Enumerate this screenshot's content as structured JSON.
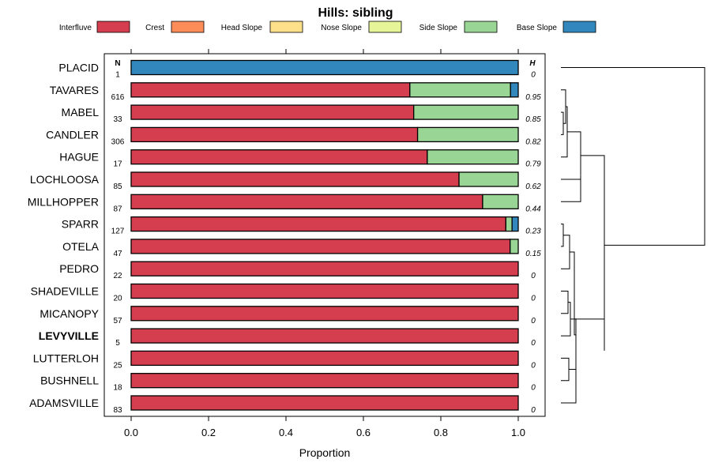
{
  "chart_data": {
    "type": "bar",
    "orientation": "horizontal",
    "stacked": true,
    "title": "Hills: sibling",
    "xlabel": "Proportion",
    "xlim": [
      0,
      1
    ],
    "xticks": [
      "0.0",
      "0.2",
      "0.4",
      "0.6",
      "0.8",
      "1.0"
    ],
    "n_header": "N",
    "h_header": "H",
    "legend": [
      {
        "name": "Interfluve",
        "color": "#d53e4f"
      },
      {
        "name": "Crest",
        "color": "#fc8d59"
      },
      {
        "name": "Head Slope",
        "color": "#fee08b"
      },
      {
        "name": "Nose Slope",
        "color": "#e6f598"
      },
      {
        "name": "Side Slope",
        "color": "#99d594"
      },
      {
        "name": "Base Slope",
        "color": "#3288bd"
      }
    ],
    "rows": [
      {
        "label": "PLACID",
        "n": "1",
        "h": "0",
        "bold": false,
        "values": [
          0,
          0,
          0,
          0,
          0,
          1.0
        ]
      },
      {
        "label": "TAVARES",
        "n": "616",
        "h": "0.95",
        "bold": false,
        "values": [
          0.72,
          0,
          0,
          0,
          0.26,
          0.02
        ]
      },
      {
        "label": "MABEL",
        "n": "33",
        "h": "0.85",
        "bold": false,
        "values": [
          0.73,
          0,
          0,
          0,
          0.27,
          0
        ]
      },
      {
        "label": "CANDLER",
        "n": "306",
        "h": "0.82",
        "bold": false,
        "values": [
          0.74,
          0,
          0,
          0,
          0.26,
          0
        ]
      },
      {
        "label": "HAGUE",
        "n": "17",
        "h": "0.79",
        "bold": false,
        "values": [
          0.765,
          0,
          0,
          0,
          0.235,
          0
        ]
      },
      {
        "label": "LOCHLOOSA",
        "n": "85",
        "h": "0.62",
        "bold": false,
        "values": [
          0.847,
          0,
          0,
          0,
          0.153,
          0
        ]
      },
      {
        "label": "MILLHOPPER",
        "n": "87",
        "h": "0.44",
        "bold": false,
        "values": [
          0.908,
          0,
          0,
          0,
          0.092,
          0
        ]
      },
      {
        "label": "SPARR",
        "n": "127",
        "h": "0.23",
        "bold": false,
        "values": [
          0.968,
          0,
          0,
          0,
          0.016,
          0.016
        ]
      },
      {
        "label": "OTELA",
        "n": "47",
        "h": "0.15",
        "bold": false,
        "values": [
          0.979,
          0,
          0,
          0,
          0.021,
          0
        ]
      },
      {
        "label": "PEDRO",
        "n": "22",
        "h": "0",
        "bold": false,
        "values": [
          1.0,
          0,
          0,
          0,
          0,
          0
        ]
      },
      {
        "label": "SHADEVILLE",
        "n": "20",
        "h": "0",
        "bold": false,
        "values": [
          1.0,
          0,
          0,
          0,
          0,
          0
        ]
      },
      {
        "label": "MICANOPY",
        "n": "57",
        "h": "0",
        "bold": false,
        "values": [
          1.0,
          0,
          0,
          0,
          0,
          0
        ]
      },
      {
        "label": "LEVYVILLE",
        "n": "5",
        "h": "0",
        "bold": true,
        "values": [
          1.0,
          0,
          0,
          0,
          0,
          0
        ]
      },
      {
        "label": "LUTTERLOH",
        "n": "25",
        "h": "0",
        "bold": false,
        "values": [
          1.0,
          0,
          0,
          0,
          0,
          0
        ]
      },
      {
        "label": "BUSHNELL",
        "n": "18",
        "h": "0",
        "bold": false,
        "values": [
          1.0,
          0,
          0,
          0,
          0,
          0
        ]
      },
      {
        "label": "ADAMSVILLE",
        "n": "83",
        "h": "0",
        "bold": false,
        "values": [
          1.0,
          0,
          0,
          0,
          0,
          0
        ]
      }
    ],
    "dendrogram": {
      "leaves": [
        "PLACID",
        "TAVARES",
        "MABEL",
        "CANDLER",
        "HAGUE",
        "LOCHLOOSA",
        "MILLHOPPER",
        "SPARR",
        "OTELA",
        "PEDRO",
        "SHADEVILLE",
        "MICANOPY",
        "LEVYVILLE",
        "LUTTERLOH",
        "BUSHNELL",
        "ADAMSVILLE"
      ]
    }
  }
}
